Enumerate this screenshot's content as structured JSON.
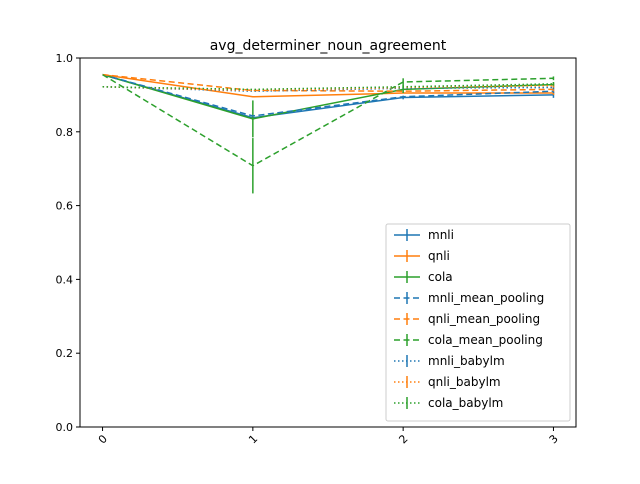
{
  "chart_data": {
    "type": "line",
    "title": "avg_determiner_noun_agreement",
    "xlabel": "",
    "ylabel": "",
    "x": [
      0,
      1,
      2,
      3
    ],
    "x_tick_labels": [
      "0",
      "1",
      "2",
      "3"
    ],
    "y_ticks": [
      0.0,
      0.2,
      0.4,
      0.6,
      0.8,
      1.0
    ],
    "y_tick_labels": [
      "0.0",
      "0.2",
      "0.4",
      "0.6",
      "0.8",
      "1.0"
    ],
    "xlim": [
      -0.15,
      3.15
    ],
    "ylim": [
      0.0,
      1.0
    ],
    "grid": false,
    "legend_position": "lower-right",
    "series": [
      {
        "name": "mnli",
        "color": "#1f77b4",
        "style": "solid",
        "values": [
          0.955,
          0.838,
          0.893,
          0.9
        ],
        "errors": [
          0,
          0,
          0.005,
          0.008
        ]
      },
      {
        "name": "qnli",
        "color": "#ff7f0e",
        "style": "solid",
        "values": [
          0.955,
          0.895,
          0.905,
          0.905
        ],
        "errors": [
          0,
          0,
          0,
          0.005
        ]
      },
      {
        "name": "cola",
        "color": "#2ca02c",
        "style": "solid",
        "values": [
          0.955,
          0.835,
          0.915,
          0.928
        ],
        "errors": [
          0,
          0.05,
          0.01,
          0.005
        ]
      },
      {
        "name": "mnli_mean_pooling",
        "color": "#1f77b4",
        "style": "dashed",
        "values": [
          0.955,
          0.843,
          0.895,
          0.91
        ],
        "errors": [
          0,
          0,
          0,
          0.005
        ]
      },
      {
        "name": "qnli_mean_pooling",
        "color": "#ff7f0e",
        "style": "dashed",
        "values": [
          0.955,
          0.912,
          0.91,
          0.915
        ],
        "errors": [
          0,
          0,
          0,
          0.005
        ]
      },
      {
        "name": "cola_mean_pooling",
        "color": "#2ca02c",
        "style": "dashed",
        "values": [
          0.955,
          0.708,
          0.935,
          0.945
        ],
        "errors": [
          0,
          0.075,
          0.01,
          0.005
        ]
      },
      {
        "name": "mnli_babylm",
        "color": "#1f77b4",
        "style": "dotted",
        "values": [
          0.922,
          0.91,
          0.918,
          0.92
        ],
        "errors": [
          0,
          0,
          0,
          0.005
        ]
      },
      {
        "name": "qnli_babylm",
        "color": "#ff7f0e",
        "style": "dotted",
        "values": [
          0.922,
          0.912,
          0.92,
          0.925
        ],
        "errors": [
          0,
          0,
          0,
          0.005
        ]
      },
      {
        "name": "cola_babylm",
        "color": "#2ca02c",
        "style": "dotted",
        "values": [
          0.922,
          0.915,
          0.922,
          0.93
        ],
        "errors": [
          0,
          0,
          0.005,
          0.005
        ]
      }
    ]
  }
}
